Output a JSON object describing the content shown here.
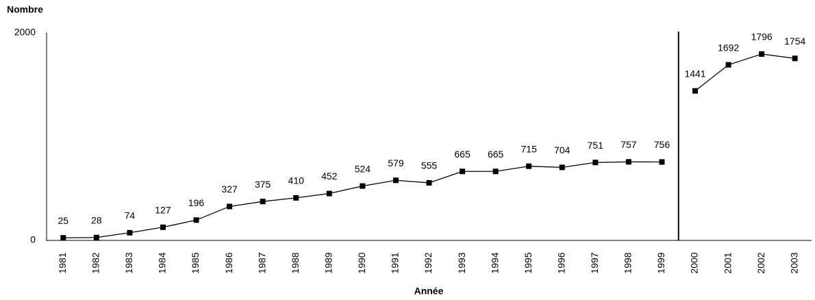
{
  "chart_data": {
    "type": "line",
    "y_label": "Nombre",
    "x_label": "Année",
    "categories": [
      "1981",
      "1982",
      "1983",
      "1984",
      "1985",
      "1986",
      "1987",
      "1988",
      "1989",
      "1990",
      "1991",
      "1992",
      "1993",
      "1994",
      "1995",
      "1996",
      "1997",
      "1998",
      "1999",
      "2000",
      "2001",
      "2002",
      "2003"
    ],
    "series": [
      {
        "color": "#000000",
        "values": [
          25,
          28,
          74,
          127,
          196,
          327,
          375,
          410,
          452,
          524,
          579,
          555,
          665,
          665,
          715,
          704,
          751,
          757,
          756,
          null,
          null,
          null,
          null
        ]
      },
      {
        "color": "#000000",
        "values": [
          null,
          null,
          null,
          null,
          null,
          null,
          null,
          null,
          null,
          null,
          null,
          null,
          null,
          null,
          null,
          null,
          null,
          null,
          null,
          1441,
          1692,
          1796,
          1754
        ]
      }
    ],
    "ylim": [
      0,
      2000
    ],
    "yticks": [
      0,
      2000
    ],
    "grid": false
  }
}
